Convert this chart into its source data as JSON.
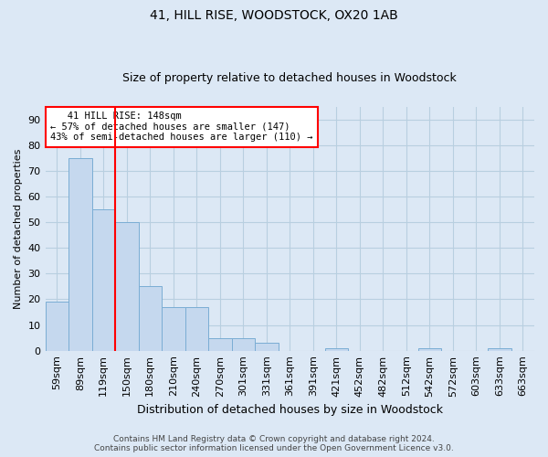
{
  "title": "41, HILL RISE, WOODSTOCK, OX20 1AB",
  "subtitle": "Size of property relative to detached houses in Woodstock",
  "xlabel": "Distribution of detached houses by size in Woodstock",
  "ylabel": "Number of detached properties",
  "categories": [
    "59sqm",
    "89sqm",
    "119sqm",
    "150sqm",
    "180sqm",
    "210sqm",
    "240sqm",
    "270sqm",
    "301sqm",
    "331sqm",
    "361sqm",
    "391sqm",
    "421sqm",
    "452sqm",
    "482sqm",
    "512sqm",
    "542sqm",
    "572sqm",
    "603sqm",
    "633sqm",
    "663sqm"
  ],
  "values": [
    19,
    75,
    55,
    50,
    25,
    17,
    17,
    5,
    5,
    3,
    0,
    0,
    1,
    0,
    0,
    0,
    1,
    0,
    0,
    1,
    0
  ],
  "bar_color": "#c5d8ee",
  "bar_edge_color": "#7aadd4",
  "vline_color": "red",
  "annotation_line1": "   41 HILL RISE: 148sqm",
  "annotation_line2": "← 57% of detached houses are smaller (147)",
  "annotation_line3": "43% of semi-detached houses are larger (110) →",
  "annotation_box_color": "white",
  "annotation_box_edge_color": "red",
  "ylim": [
    0,
    95
  ],
  "yticks": [
    0,
    10,
    20,
    30,
    40,
    50,
    60,
    70,
    80,
    90
  ],
  "footer": "Contains HM Land Registry data © Crown copyright and database right 2024.\nContains public sector information licensed under the Open Government Licence v3.0.",
  "bg_color": "#dce8f5",
  "grid_color": "#b8cfe0",
  "title_fontsize": 10,
  "subtitle_fontsize": 9,
  "ylabel_fontsize": 8,
  "xlabel_fontsize": 9,
  "tick_fontsize": 8,
  "annotation_fontsize": 7.5,
  "footer_fontsize": 6.5
}
